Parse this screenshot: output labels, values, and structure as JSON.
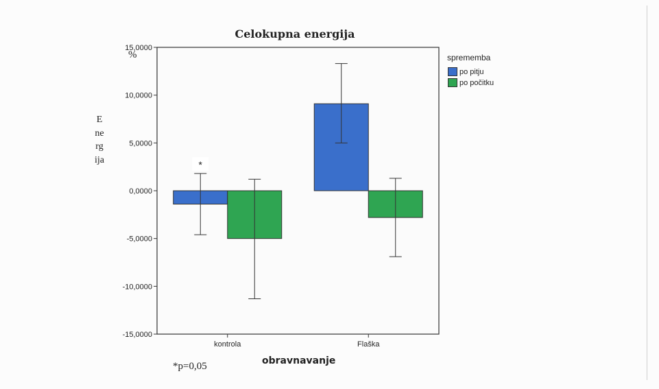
{
  "page": {
    "title": "Celokupna energija",
    "y_unit": "%",
    "y_title": "Energija",
    "x_title": "obravnavanje",
    "footnote": "*p=0,05"
  },
  "legend": {
    "title": "sprememba",
    "items": [
      {
        "label": "po pitju",
        "color": "#3a6fcb"
      },
      {
        "label": "po počitku",
        "color": "#2fa552"
      }
    ]
  },
  "chart_data": {
    "type": "bar",
    "title": "Celokupna energija",
    "xlabel": "obravnavanje",
    "ylabel": "Energija",
    "categories": [
      "kontrola",
      "Flaška"
    ],
    "series": [
      {
        "name": "po pitju",
        "color": "#3a6fcb",
        "values": [
          -1.4,
          9.1
        ],
        "err_low": [
          -4.6,
          5.0
        ],
        "err_high": [
          1.8,
          13.3
        ]
      },
      {
        "name": "po počitku",
        "color": "#2fa552",
        "values": [
          -5.0,
          -2.8
        ],
        "err_low": [
          -11.3,
          -6.9
        ],
        "err_high": [
          1.2,
          1.3
        ]
      }
    ],
    "ylim": [
      -15,
      15
    ],
    "yticks": [
      "-15,0000",
      "-10,0000",
      "-5,0000",
      "0,0000",
      "5,0000",
      "10,0000",
      "15,0000"
    ],
    "ytick_values": [
      -15,
      -10,
      -5,
      0,
      5,
      10,
      15
    ],
    "annotations": [
      {
        "text": "*",
        "category": "kontrola",
        "series": "po pitju"
      }
    ],
    "grid": false,
    "legend_position": "right"
  }
}
